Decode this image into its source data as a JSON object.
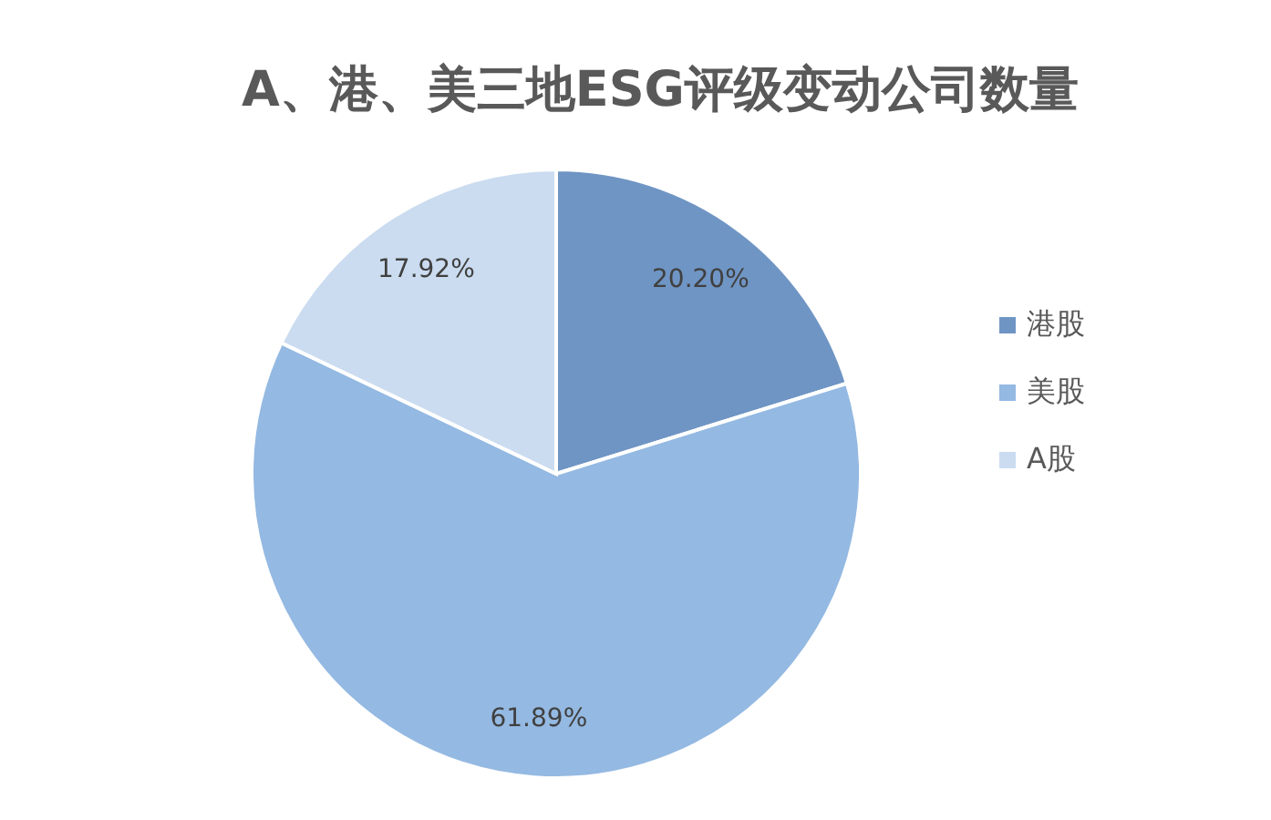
{
  "chart_data": {
    "type": "pie",
    "title": "A、港、美三地ESG评级变动公司数量",
    "categories": [
      "港股",
      "美股",
      "A股"
    ],
    "values": [
      20.2,
      61.89,
      17.92
    ],
    "colors": [
      "#6f95c4",
      "#94b9e2",
      "#cbdcf0"
    ],
    "value_labels": [
      "20.20%",
      "61.89%",
      "17.92%"
    ],
    "legend": "right"
  }
}
